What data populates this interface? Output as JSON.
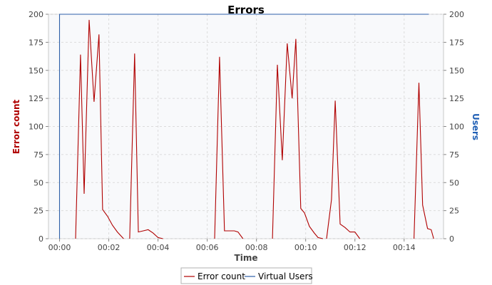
{
  "chart_data": {
    "type": "line",
    "title": "Errors",
    "xlabel": "Time",
    "ylabel_left": "Error count",
    "ylabel_right": "Users",
    "x_unit": "minutes",
    "xlim": [
      -0.45,
      15.6
    ],
    "ylim_left": [
      0,
      200
    ],
    "ylim_right": [
      0,
      200
    ],
    "x_ticks": [
      0,
      2,
      4,
      6,
      8,
      10,
      12,
      14
    ],
    "x_tick_labels": [
      "00:00",
      "00:02",
      "00:04",
      "00:06",
      "00:08",
      "00:10",
      "00:12",
      "00:14"
    ],
    "y_ticks_left": [
      0,
      25,
      50,
      75,
      100,
      125,
      150,
      175,
      200
    ],
    "y_ticks_right": [
      0,
      25,
      50,
      75,
      100,
      125,
      150,
      175,
      200
    ],
    "grid": true,
    "legend_position": "bottom",
    "series": [
      {
        "name": "Error count",
        "axis": "left",
        "color": "#b00000",
        "segments": [
          [
            [
              0.65,
              0
            ],
            [
              0.85,
              164
            ],
            [
              1.0,
              40
            ],
            [
              1.2,
              195
            ],
            [
              1.4,
              122
            ],
            [
              1.6,
              182
            ],
            [
              1.75,
              26
            ],
            [
              1.95,
              20
            ],
            [
              2.15,
              12
            ],
            [
              2.35,
              6
            ],
            [
              2.6,
              0
            ]
          ],
          [
            [
              2.85,
              0
            ],
            [
              3.05,
              165
            ],
            [
              3.2,
              6
            ],
            [
              3.4,
              7
            ],
            [
              3.6,
              8
            ],
            [
              3.8,
              5
            ],
            [
              4.0,
              1
            ],
            [
              4.2,
              0
            ]
          ],
          [
            [
              6.3,
              0
            ],
            [
              6.5,
              162
            ],
            [
              6.7,
              7
            ],
            [
              6.9,
              7
            ],
            [
              7.1,
              7
            ],
            [
              7.25,
              6
            ],
            [
              7.45,
              0
            ]
          ],
          [
            [
              8.65,
              0
            ],
            [
              8.85,
              155
            ],
            [
              9.05,
              70
            ],
            [
              9.25,
              174
            ],
            [
              9.45,
              125
            ],
            [
              9.6,
              178
            ],
            [
              9.8,
              27
            ],
            [
              9.95,
              23
            ],
            [
              10.15,
              11
            ],
            [
              10.35,
              5
            ],
            [
              10.5,
              1
            ],
            [
              10.7,
              0
            ]
          ],
          [
            [
              10.85,
              0
            ],
            [
              11.05,
              35
            ],
            [
              11.2,
              123
            ],
            [
              11.4,
              13
            ],
            [
              11.6,
              10
            ],
            [
              11.8,
              6
            ],
            [
              12.0,
              6
            ],
            [
              12.2,
              0
            ]
          ],
          [
            [
              14.4,
              0
            ],
            [
              14.6,
              139
            ],
            [
              14.75,
              30
            ],
            [
              14.95,
              9
            ],
            [
              15.1,
              8
            ],
            [
              15.2,
              0
            ]
          ]
        ]
      },
      {
        "name": "Virtual Users",
        "axis": "right",
        "color": "#2d5fa8",
        "segments": [
          [
            [
              0,
              0
            ],
            [
              0,
              200
            ],
            [
              15.0,
              200
            ]
          ]
        ]
      }
    ]
  }
}
